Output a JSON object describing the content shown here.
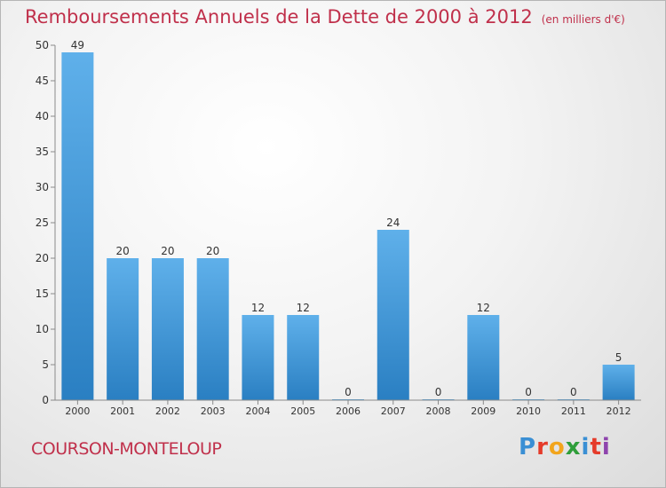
{
  "header": {
    "title": "Remboursements Annuels de la Dette de 2000 à 2012",
    "unit": "(en milliers d'€)"
  },
  "footer": {
    "city": "COURSON-MONTELOUP",
    "logo": "Proxiti"
  },
  "colors": {
    "title": "#c0304b",
    "bar_top": "#5fb0ea",
    "bar_bottom": "#2a7fc2"
  },
  "chart_data": {
    "type": "bar",
    "title": "Remboursements Annuels de la Dette de 2000 à 2012",
    "subtitle": "(en milliers d'€)",
    "xlabel": "",
    "ylabel": "",
    "categories": [
      "2000",
      "2001",
      "2002",
      "2003",
      "2004",
      "2005",
      "2006",
      "2007",
      "2008",
      "2009",
      "2010",
      "2011",
      "2012"
    ],
    "values": [
      49,
      20,
      20,
      20,
      12,
      12,
      0,
      24,
      0,
      12,
      0,
      0,
      5
    ],
    "ylim": [
      0,
      50
    ],
    "yticks": [
      0,
      5,
      10,
      15,
      20,
      25,
      30,
      35,
      40,
      45,
      50
    ],
    "grid": false,
    "data_labels": true
  }
}
